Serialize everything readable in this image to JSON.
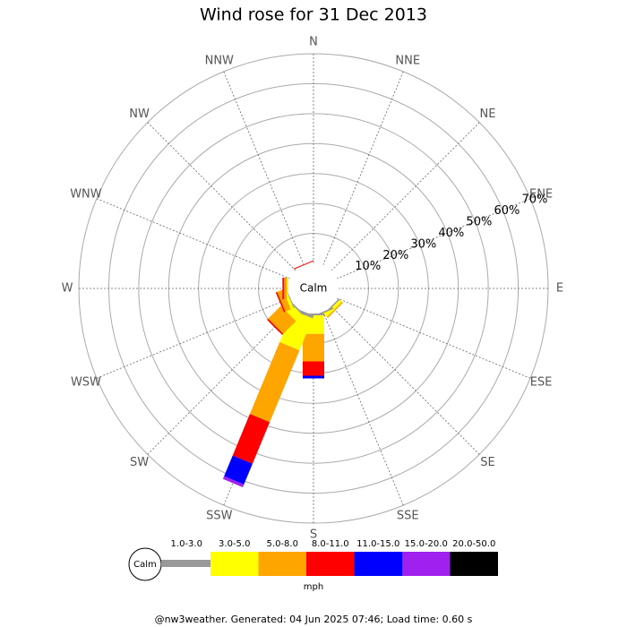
{
  "chart_data": {
    "type": "windrose",
    "title": "Wind rose for 31 Dec 2013",
    "calm_label": "Calm",
    "categories": [
      "N",
      "NNE",
      "NE",
      "ENE",
      "E",
      "ESE",
      "SE",
      "SSE",
      "S",
      "SSW",
      "SW",
      "WSW",
      "W",
      "WNW",
      "NW",
      "NNW"
    ],
    "rlim": [
      0,
      70
    ],
    "rticks": [
      {
        "value": 10,
        "label": "10%"
      },
      {
        "value": 20,
        "label": "20%"
      },
      {
        "value": 30,
        "label": "30%"
      },
      {
        "value": 40,
        "label": "40%"
      },
      {
        "value": 50,
        "label": "50%"
      },
      {
        "value": 60,
        "label": "60%"
      },
      {
        "value": 70,
        "label": "70%"
      }
    ],
    "grid": true,
    "series": [
      {
        "name": "1.0-3.0",
        "color": "#999999",
        "values": [
          0,
          0,
          0,
          0,
          0,
          0,
          0.5,
          0.5,
          0.6,
          1,
          0.5,
          0.3,
          0,
          0,
          0,
          0
        ]
      },
      {
        "name": "3.0-5.0",
        "color": "#ffff00",
        "values": [
          0,
          0,
          0,
          0,
          0,
          0,
          1,
          0.5,
          6.2,
          11.5,
          3,
          1,
          0.5,
          0,
          0,
          0
        ]
      },
      {
        "name": "5.0-8.0",
        "color": "#ffa500",
        "values": [
          0,
          0,
          0,
          0,
          0,
          0,
          0.5,
          0,
          9.2,
          26,
          6,
          2,
          1,
          0,
          0,
          0
        ]
      },
      {
        "name": "8.0-11.0",
        "color": "#ff0000",
        "values": [
          0,
          0,
          0,
          0,
          0,
          0,
          0,
          0,
          4.8,
          15,
          0.5,
          0.5,
          0.5,
          0,
          0,
          0.3
        ]
      },
      {
        "name": "11.0-15.0",
        "color": "#0000ff",
        "values": [
          0,
          0,
          0,
          0,
          0,
          0,
          0,
          0,
          0.9,
          7.5,
          0,
          0,
          0,
          0,
          0,
          0
        ]
      },
      {
        "name": "15.0-20.0",
        "color": "#a020f0",
        "values": [
          0,
          0,
          0,
          0,
          0,
          0,
          0,
          0,
          0,
          1,
          0,
          0,
          0,
          0,
          0,
          0
        ]
      },
      {
        "name": "20.0-50.0",
        "color": "#000000",
        "values": [
          0,
          0,
          0,
          0,
          0,
          0,
          0,
          0,
          0,
          0,
          0,
          0,
          0,
          0,
          0,
          0
        ]
      }
    ],
    "unit_label": "mph",
    "footer": "@nw3weather. Generated: 04 Jun 2025 07:46; Load time: 0.60 s"
  }
}
